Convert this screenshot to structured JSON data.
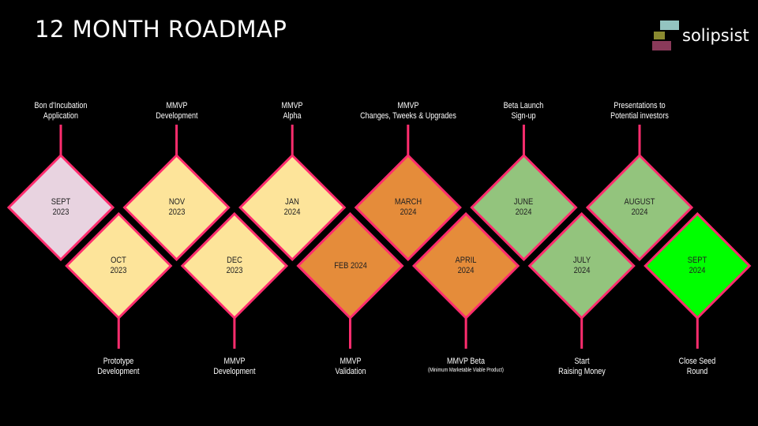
{
  "slide": {
    "title": "12 MONTH ROADMAP",
    "logo_text": "solipsist"
  },
  "colors": {
    "background": "#000000",
    "border": "#ff2d6e",
    "connector": "#ff2d6e",
    "pink": "#e8d3e0",
    "yellow": "#fde49a",
    "orange": "#e58c3a",
    "green": "#93c47d",
    "bright_green": "#00ff00",
    "logo_teal": "#93c4c0",
    "logo_olive": "#8a8a30",
    "logo_plum": "#8a3a5a"
  },
  "milestones": [
    {
      "id": "sept-2023",
      "lines": [
        "SEPT",
        "2023"
      ],
      "fill": "pink",
      "row": "top",
      "label": {
        "lines": [
          "Bon d'Incubation",
          "Application"
        ]
      }
    },
    {
      "id": "oct-2023",
      "lines": [
        "OCT",
        "2023"
      ],
      "fill": "yellow",
      "row": "bottom",
      "label": {
        "lines": [
          "Prototype",
          "Development"
        ]
      }
    },
    {
      "id": "nov-2023",
      "lines": [
        "NOV",
        "2023"
      ],
      "fill": "yellow",
      "row": "top",
      "label": {
        "lines": [
          "MMVP",
          "Development"
        ]
      }
    },
    {
      "id": "dec-2023",
      "lines": [
        "DEC",
        "2023"
      ],
      "fill": "yellow",
      "row": "bottom",
      "label": {
        "lines": [
          "MMVP",
          "Development"
        ]
      }
    },
    {
      "id": "jan-2024",
      "lines": [
        "JAN",
        "2024"
      ],
      "fill": "yellow",
      "row": "top",
      "label": {
        "lines": [
          "MMVP",
          "Alpha"
        ]
      }
    },
    {
      "id": "feb-2024",
      "lines": [
        "FEB 2024"
      ],
      "fill": "orange",
      "row": "bottom",
      "label": {
        "lines": [
          "MMVP",
          "Validation"
        ]
      }
    },
    {
      "id": "march-2024",
      "lines": [
        "MARCH",
        "2024"
      ],
      "fill": "orange",
      "row": "top",
      "label": {
        "lines": [
          "MMVP",
          "Changes, Tweeks & Upgrades"
        ]
      }
    },
    {
      "id": "april-2024",
      "lines": [
        "APRIL",
        "2024"
      ],
      "fill": "orange",
      "row": "bottom",
      "label": {
        "lines": [
          "MMVP Beta"
        ],
        "small": "(Minimum Marketable Viable Product)"
      }
    },
    {
      "id": "june-2024",
      "lines": [
        "JUNE",
        "2024"
      ],
      "fill": "green",
      "row": "top",
      "label": {
        "lines": [
          "Beta Launch",
          "Sign-up"
        ]
      }
    },
    {
      "id": "july-2024",
      "lines": [
        "JULY",
        "2024"
      ],
      "fill": "green",
      "row": "bottom",
      "label": {
        "lines": [
          "Start",
          "Raising Money"
        ]
      }
    },
    {
      "id": "august-2024",
      "lines": [
        "AUGUST",
        "2024"
      ],
      "fill": "green",
      "row": "top",
      "label": {
        "lines": [
          "Presentations to",
          "Potential investors"
        ]
      }
    },
    {
      "id": "sept-2024",
      "lines": [
        "SEPT",
        "2024"
      ],
      "fill": "bright_green",
      "row": "bottom",
      "label": {
        "lines": [
          "Close Seed",
          "Round"
        ]
      }
    }
  ]
}
